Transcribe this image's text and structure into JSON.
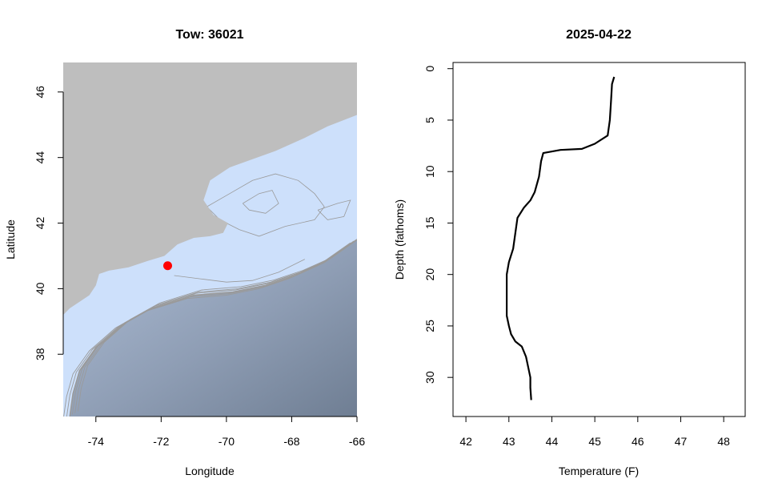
{
  "chart_data": [
    {
      "type": "map",
      "title": "Tow: 36021",
      "xlabel": "Longitude",
      "ylabel": "Latitude",
      "xlim": [
        -75,
        -66
      ],
      "ylim": [
        36.1,
        46.9
      ],
      "xticks": [
        -74,
        -72,
        -70,
        -68,
        -66
      ],
      "yticks": [
        38,
        40,
        42,
        44,
        46
      ],
      "colors": {
        "land": "#bebebe",
        "shelf": "#cde0fb",
        "deep": "#7e8da3",
        "contour": "#9a9a9a",
        "point": "#ff0000"
      },
      "coastline": [
        [
          -75,
          39.2
        ],
        [
          -74.8,
          39.4
        ],
        [
          -74.2,
          39.8
        ],
        [
          -74.0,
          40.1
        ],
        [
          -73.9,
          40.45
        ],
        [
          -73.6,
          40.55
        ],
        [
          -73.0,
          40.65
        ],
        [
          -72.4,
          40.85
        ],
        [
          -71.9,
          41.0
        ],
        [
          -71.5,
          41.35
        ],
        [
          -71.0,
          41.55
        ],
        [
          -70.5,
          41.6
        ],
        [
          -70.1,
          41.7
        ],
        [
          -69.95,
          42.0
        ],
        [
          -70.4,
          42.25
        ],
        [
          -70.7,
          42.7
        ],
        [
          -70.5,
          43.3
        ],
        [
          -69.9,
          43.7
        ],
        [
          -69.2,
          43.95
        ],
        [
          -68.5,
          44.2
        ],
        [
          -67.6,
          44.6
        ],
        [
          -66.9,
          44.95
        ],
        [
          -66.0,
          45.3
        ]
      ],
      "shelf_break": [
        [
          -74.8,
          36.1
        ],
        [
          -74.7,
          36.8
        ],
        [
          -74.5,
          37.5
        ],
        [
          -74.0,
          38.2
        ],
        [
          -73.2,
          38.9
        ],
        [
          -72.3,
          39.4
        ],
        [
          -71.0,
          39.8
        ],
        [
          -69.8,
          39.9
        ],
        [
          -68.8,
          40.1
        ],
        [
          -67.9,
          40.4
        ],
        [
          -67.0,
          40.8
        ],
        [
          -66.0,
          41.5
        ]
      ],
      "point": {
        "lon": -71.8,
        "lat": 40.7
      }
    },
    {
      "type": "line",
      "title": "2025-04-22",
      "xlabel": "Temperature (F)",
      "ylabel": "Depth (fathoms)",
      "xlim": [
        41.7,
        48.5
      ],
      "ylim": [
        33.8,
        -0.6
      ],
      "xticks": [
        42,
        43,
        44,
        45,
        46,
        47,
        48
      ],
      "yticks": [
        0,
        5,
        10,
        15,
        20,
        25,
        30
      ],
      "series": [
        {
          "x": [
            45.45,
            45.4,
            45.38,
            45.35,
            45.3,
            45.0,
            44.7,
            44.2,
            43.8,
            43.75,
            43.7,
            43.6,
            43.5,
            43.35,
            43.2,
            43.15,
            43.1,
            43.0,
            42.95,
            42.95,
            42.95,
            43.0,
            43.05,
            43.15,
            43.3,
            43.4,
            43.45,
            43.5,
            43.5,
            43.52
          ],
          "y": [
            0.8,
            1.5,
            3.0,
            5.0,
            6.5,
            7.3,
            7.8,
            7.9,
            8.2,
            9.0,
            10.5,
            12.0,
            12.8,
            13.5,
            14.5,
            16.0,
            17.5,
            18.8,
            20.0,
            22.0,
            24.0,
            25.0,
            25.8,
            26.5,
            27.0,
            28.0,
            29.0,
            30.0,
            31.0,
            32.2
          ]
        }
      ]
    }
  ]
}
